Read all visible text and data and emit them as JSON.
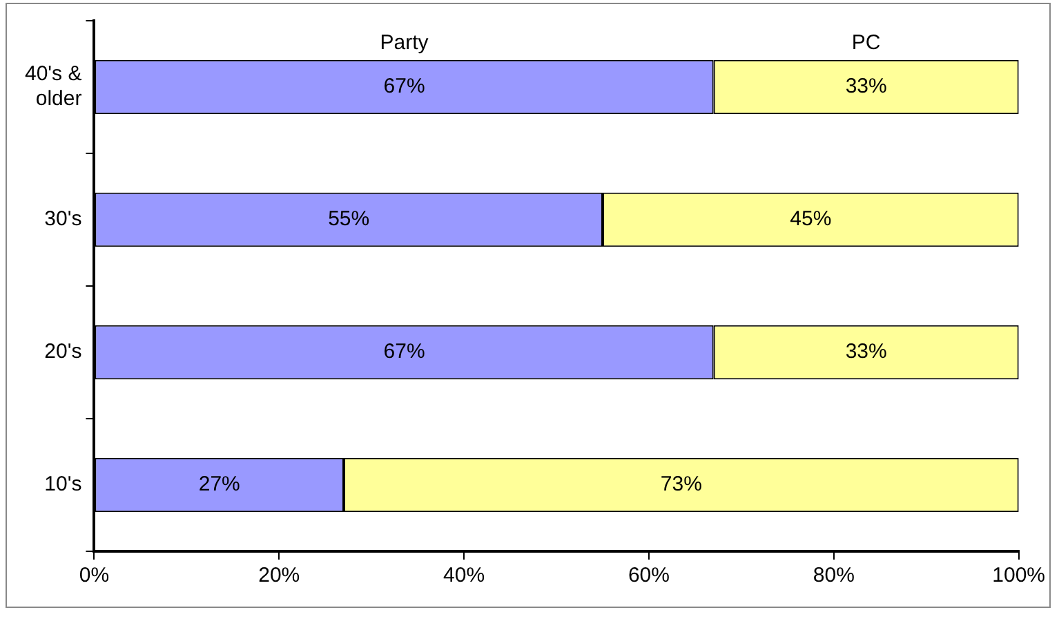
{
  "chart_data": {
    "type": "bar",
    "orientation": "horizontal",
    "stacked": true,
    "categories": [
      "40's & older",
      "30's",
      "20's",
      "10's"
    ],
    "series": [
      {
        "name": "Party",
        "color": "#9999ff",
        "values": [
          67,
          55,
          67,
          27
        ],
        "value_labels": [
          "67%",
          "55%",
          "67%",
          "27%"
        ]
      },
      {
        "name": "PC",
        "color": "#ffff99",
        "values": [
          33,
          45,
          33,
          73
        ],
        "value_labels": [
          "33%",
          "45%",
          "33%",
          "73%"
        ]
      }
    ],
    "xlim": [
      0,
      100
    ],
    "xticks": [
      {
        "value": 0,
        "label": "0%"
      },
      {
        "value": 20,
        "label": "20%"
      },
      {
        "value": 40,
        "label": "40%"
      },
      {
        "value": 60,
        "label": "60%"
      },
      {
        "value": 80,
        "label": "80%"
      },
      {
        "value": 100,
        "label": "100%"
      }
    ],
    "grid": false,
    "legend": false
  }
}
